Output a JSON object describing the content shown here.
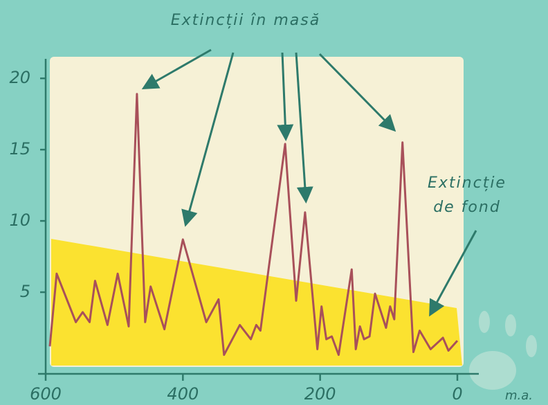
{
  "chart_data": {
    "type": "line",
    "annotations": [
      [
        "Extincții în masă"
      ],
      [
        "Extincție",
        "de fond"
      ]
    ],
    "xlabel": "m.a.",
    "x": [
      594,
      584,
      556,
      546,
      536,
      528,
      510,
      495,
      479,
      467,
      455,
      447,
      427,
      400,
      366,
      348,
      340,
      317,
      301,
      293,
      287,
      251,
      235,
      222,
      204,
      198,
      191,
      183,
      173,
      154,
      148,
      142,
      136,
      128,
      120,
      104,
      98,
      92,
      80,
      64,
      55,
      39,
      21,
      13,
      0
    ],
    "values": [
      1.2,
      6.3,
      2.9,
      3.6,
      2.9,
      5.8,
      2.7,
      6.3,
      2.6,
      18.9,
      2.9,
      5.4,
      2.4,
      8.7,
      2.9,
      4.5,
      0.6,
      2.7,
      1.7,
      2.7,
      2.3,
      15.4,
      4.4,
      10.6,
      1.0,
      4.0,
      1.7,
      1.9,
      0.6,
      6.6,
      1.0,
      2.6,
      1.7,
      1.9,
      4.9,
      2.5,
      4.0,
      3.1,
      15.5,
      0.8,
      2.3,
      1.0,
      1.8,
      0.9,
      1.6
    ],
    "color": "#a8505a",
    "xlim": [
      600,
      0
    ],
    "xticks": [
      600,
      400,
      200,
      0
    ],
    "ylim": [
      0,
      22
    ],
    "yticks": [
      5,
      10,
      15,
      20
    ]
  }
}
